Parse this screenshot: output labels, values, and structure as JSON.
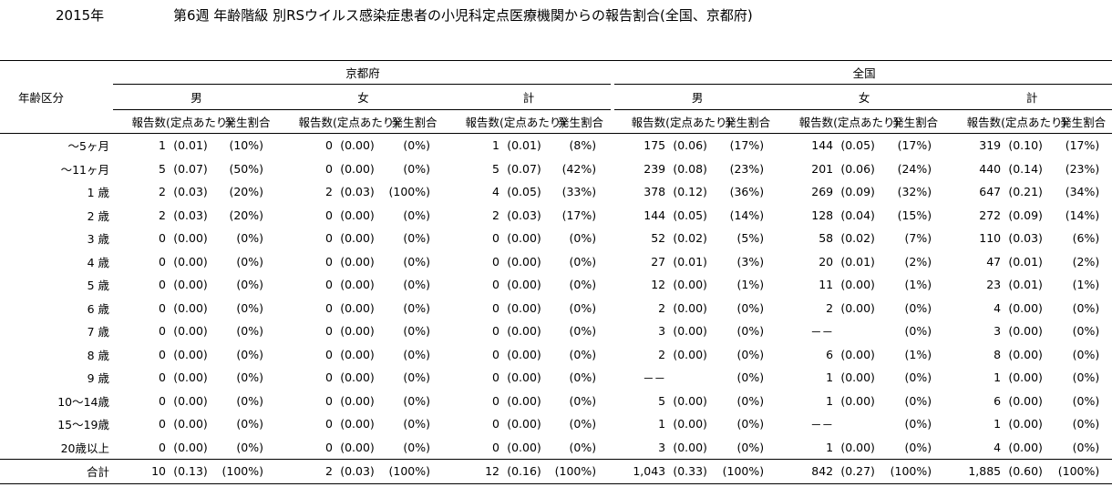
{
  "header": {
    "year": "2015年",
    "title": "第6週 年齢階級 別RSウイルス感染症患者の小児科定点医療機関からの報告割合(全国、京都府)"
  },
  "table": {
    "row_header": "年齢区分",
    "groups": [
      "京都府",
      "全国"
    ],
    "sexes": [
      "男",
      "女",
      "計"
    ],
    "col_count": "報告数",
    "col_per": "(定点あたり)",
    "col_ratio": "発生割合",
    "rows": [
      {
        "label": "～5ヶ月",
        "cells": [
          [
            "1",
            "(0.01)",
            "(10%)"
          ],
          [
            "0",
            "(0.00)",
            "(0%)"
          ],
          [
            "1",
            "(0.01)",
            "(8%)"
          ],
          [
            "175",
            "(0.06)",
            "(17%)"
          ],
          [
            "144",
            "(0.05)",
            "(17%)"
          ],
          [
            "319",
            "(0.10)",
            "(17%)"
          ]
        ]
      },
      {
        "label": "～11ヶ月",
        "cells": [
          [
            "5",
            "(0.07)",
            "(50%)"
          ],
          [
            "0",
            "(0.00)",
            "(0%)"
          ],
          [
            "5",
            "(0.07)",
            "(42%)"
          ],
          [
            "239",
            "(0.08)",
            "(23%)"
          ],
          [
            "201",
            "(0.06)",
            "(24%)"
          ],
          [
            "440",
            "(0.14)",
            "(23%)"
          ]
        ]
      },
      {
        "label": "1 歳",
        "cells": [
          [
            "2",
            "(0.03)",
            "(20%)"
          ],
          [
            "2",
            "(0.03)",
            "(100%)"
          ],
          [
            "4",
            "(0.05)",
            "(33%)"
          ],
          [
            "378",
            "(0.12)",
            "(36%)"
          ],
          [
            "269",
            "(0.09)",
            "(32%)"
          ],
          [
            "647",
            "(0.21)",
            "(34%)"
          ]
        ]
      },
      {
        "label": "2 歳",
        "cells": [
          [
            "2",
            "(0.03)",
            "(20%)"
          ],
          [
            "0",
            "(0.00)",
            "(0%)"
          ],
          [
            "2",
            "(0.03)",
            "(17%)"
          ],
          [
            "144",
            "(0.05)",
            "(14%)"
          ],
          [
            "128",
            "(0.04)",
            "(15%)"
          ],
          [
            "272",
            "(0.09)",
            "(14%)"
          ]
        ]
      },
      {
        "label": "3 歳",
        "cells": [
          [
            "0",
            "(0.00)",
            "(0%)"
          ],
          [
            "0",
            "(0.00)",
            "(0%)"
          ],
          [
            "0",
            "(0.00)",
            "(0%)"
          ],
          [
            "52",
            "(0.02)",
            "(5%)"
          ],
          [
            "58",
            "(0.02)",
            "(7%)"
          ],
          [
            "110",
            "(0.03)",
            "(6%)"
          ]
        ]
      },
      {
        "label": "4 歳",
        "cells": [
          [
            "0",
            "(0.00)",
            "(0%)"
          ],
          [
            "0",
            "(0.00)",
            "(0%)"
          ],
          [
            "0",
            "(0.00)",
            "(0%)"
          ],
          [
            "27",
            "(0.01)",
            "(3%)"
          ],
          [
            "20",
            "(0.01)",
            "(2%)"
          ],
          [
            "47",
            "(0.01)",
            "(2%)"
          ]
        ]
      },
      {
        "label": "5 歳",
        "cells": [
          [
            "0",
            "(0.00)",
            "(0%)"
          ],
          [
            "0",
            "(0.00)",
            "(0%)"
          ],
          [
            "0",
            "(0.00)",
            "(0%)"
          ],
          [
            "12",
            "(0.00)",
            "(1%)"
          ],
          [
            "11",
            "(0.00)",
            "(1%)"
          ],
          [
            "23",
            "(0.01)",
            "(1%)"
          ]
        ]
      },
      {
        "label": "6 歳",
        "cells": [
          [
            "0",
            "(0.00)",
            "(0%)"
          ],
          [
            "0",
            "(0.00)",
            "(0%)"
          ],
          [
            "0",
            "(0.00)",
            "(0%)"
          ],
          [
            "2",
            "(0.00)",
            "(0%)"
          ],
          [
            "2",
            "(0.00)",
            "(0%)"
          ],
          [
            "4",
            "(0.00)",
            "(0%)"
          ]
        ]
      },
      {
        "label": "7 歳",
        "cells": [
          [
            "0",
            "(0.00)",
            "(0%)"
          ],
          [
            "0",
            "(0.00)",
            "(0%)"
          ],
          [
            "0",
            "(0.00)",
            "(0%)"
          ],
          [
            "3",
            "(0.00)",
            "(0%)"
          ],
          [
            "－－",
            "",
            "(0%)"
          ],
          [
            "3",
            "(0.00)",
            "(0%)"
          ]
        ]
      },
      {
        "label": "8 歳",
        "cells": [
          [
            "0",
            "(0.00)",
            "(0%)"
          ],
          [
            "0",
            "(0.00)",
            "(0%)"
          ],
          [
            "0",
            "(0.00)",
            "(0%)"
          ],
          [
            "2",
            "(0.00)",
            "(0%)"
          ],
          [
            "6",
            "(0.00)",
            "(1%)"
          ],
          [
            "8",
            "(0.00)",
            "(0%)"
          ]
        ]
      },
      {
        "label": "9 歳",
        "cells": [
          [
            "0",
            "(0.00)",
            "(0%)"
          ],
          [
            "0",
            "(0.00)",
            "(0%)"
          ],
          [
            "0",
            "(0.00)",
            "(0%)"
          ],
          [
            "－－",
            "",
            "(0%)"
          ],
          [
            "1",
            "(0.00)",
            "(0%)"
          ],
          [
            "1",
            "(0.00)",
            "(0%)"
          ]
        ]
      },
      {
        "label": "10～14歳",
        "cells": [
          [
            "0",
            "(0.00)",
            "(0%)"
          ],
          [
            "0",
            "(0.00)",
            "(0%)"
          ],
          [
            "0",
            "(0.00)",
            "(0%)"
          ],
          [
            "5",
            "(0.00)",
            "(0%)"
          ],
          [
            "1",
            "(0.00)",
            "(0%)"
          ],
          [
            "6",
            "(0.00)",
            "(0%)"
          ]
        ]
      },
      {
        "label": "15～19歳",
        "cells": [
          [
            "0",
            "(0.00)",
            "(0%)"
          ],
          [
            "0",
            "(0.00)",
            "(0%)"
          ],
          [
            "0",
            "(0.00)",
            "(0%)"
          ],
          [
            "1",
            "(0.00)",
            "(0%)"
          ],
          [
            "－－",
            "",
            "(0%)"
          ],
          [
            "1",
            "(0.00)",
            "(0%)"
          ]
        ]
      },
      {
        "label": "20歳以上",
        "cells": [
          [
            "0",
            "(0.00)",
            "(0%)"
          ],
          [
            "0",
            "(0.00)",
            "(0%)"
          ],
          [
            "0",
            "(0.00)",
            "(0%)"
          ],
          [
            "3",
            "(0.00)",
            "(0%)"
          ],
          [
            "1",
            "(0.00)",
            "(0%)"
          ],
          [
            "4",
            "(0.00)",
            "(0%)"
          ]
        ]
      }
    ],
    "total": {
      "label": "合計",
      "cells": [
        [
          "10",
          "(0.13)",
          "(100%)"
        ],
        [
          "2",
          "(0.03)",
          "(100%)"
        ],
        [
          "12",
          "(0.16)",
          "(100%)"
        ],
        [
          "1,043",
          "(0.33)",
          "(100%)"
        ],
        [
          "842",
          "(0.27)",
          "(100%)"
        ],
        [
          "1,885",
          "(0.60)",
          "(100%)"
        ]
      ]
    }
  }
}
